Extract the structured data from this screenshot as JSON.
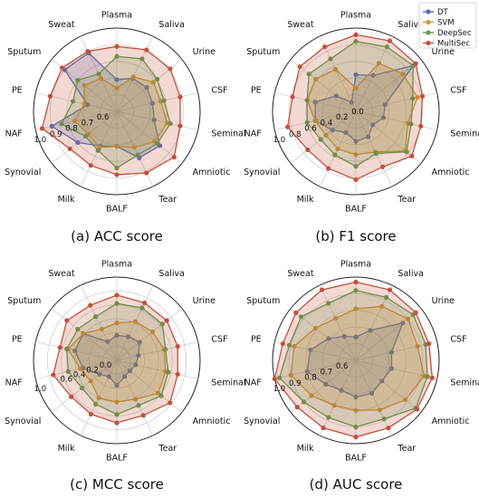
{
  "chart_data": [
    {
      "type": "radar",
      "caption": "(a) ACC score",
      "axes": [
        "Plasma",
        "Saliva",
        "Urine",
        "CSF",
        "Seminal",
        "Amniotic",
        "Tear",
        "BALF",
        "Milk",
        "Synovial",
        "NAF",
        "PE",
        "Sputum",
        "Sweat"
      ],
      "rlim": [
        0.5,
        1.0
      ],
      "ticks": [
        0.6,
        0.7,
        0.8,
        0.9,
        1.0
      ],
      "tick_labels": [
        "0.6",
        "0.7",
        "0.8",
        "0.9",
        "1.0"
      ],
      "series": [
        {
          "name": "DT",
          "values": [
            0.69,
            0.72,
            0.73,
            0.72,
            0.73,
            0.83,
            0.81,
            0.71,
            0.73,
            0.8,
            0.9,
            0.68,
            0.9,
            0.89
          ]
        },
        {
          "name": "SVM",
          "values": [
            0.64,
            0.73,
            0.78,
            0.77,
            0.81,
            0.79,
            0.74,
            0.71,
            0.74,
            0.72,
            0.76,
            0.7,
            0.75,
            0.72
          ]
        },
        {
          "name": "DeepSec",
          "values": [
            0.83,
            0.85,
            0.81,
            0.79,
            0.83,
            0.81,
            0.79,
            0.84,
            0.76,
            0.74,
            0.84,
            0.77,
            0.8,
            0.75
          ]
        },
        {
          "name": "MultiSec",
          "values": [
            0.89,
            0.91,
            0.91,
            0.89,
            0.89,
            0.94,
            0.91,
            0.88,
            0.86,
            0.86,
            0.96,
            0.91,
            0.92,
            0.9
          ]
        }
      ]
    },
    {
      "type": "radar",
      "caption": "(b) F1 score",
      "axes": [
        "Plasma",
        "Saliva",
        "Urine",
        "CSF",
        "Seminal",
        "Amniotic",
        "Tear",
        "BALF",
        "Milk",
        "Synovial",
        "NAF",
        "PE",
        "Sputum",
        "Sweat"
      ],
      "rlim": [
        0.0,
        1.0
      ],
      "ticks": [
        0.0,
        0.2,
        0.4,
        0.6,
        0.8,
        1.0
      ],
      "tick_labels": [
        "0.0",
        "0.2",
        "0.4",
        "0.6",
        "0.8",
        "1.0"
      ],
      "series": [
        {
          "name": "DT",
          "values": [
            0.44,
            0.48,
            0.88,
            0.36,
            0.34,
            0.26,
            0.34,
            0.36,
            0.28,
            0.36,
            0.5,
            0.5,
            0.3,
            0.12
          ]
        },
        {
          "name": "SVM",
          "values": [
            0.28,
            0.64,
            0.72,
            0.76,
            0.64,
            0.76,
            0.54,
            0.52,
            0.5,
            0.46,
            0.5,
            0.6,
            0.62,
            0.56
          ]
        },
        {
          "name": "DeepSec",
          "values": [
            0.84,
            0.86,
            0.88,
            0.7,
            0.68,
            0.78,
            0.56,
            0.66,
            0.58,
            0.54,
            0.6,
            0.6,
            0.72,
            0.7
          ]
        },
        {
          "name": "MultiSec",
          "values": [
            0.92,
            0.94,
            0.92,
            0.82,
            0.8,
            0.86,
            0.74,
            0.82,
            0.76,
            0.74,
            0.84,
            0.78,
            0.86,
            0.86
          ]
        }
      ]
    },
    {
      "type": "radar",
      "caption": "(c) MCC score",
      "axes": [
        "Plasma",
        "Saliva",
        "Urine",
        "CSF",
        "Seminal",
        "Amniotic",
        "Tear",
        "BALF",
        "Milk",
        "Synovial",
        "NAF",
        "PE",
        "Sputum",
        "Sweat"
      ],
      "rlim": [
        -0.2,
        1.0
      ],
      "ticks": [
        0.0,
        0.2,
        0.4,
        0.6,
        0.8,
        1.0
      ],
      "tick_labels": [
        "0.0",
        "0.2",
        "0.4",
        "0.6",
        "",
        "1.0"
      ],
      "series": [
        {
          "name": "DT",
          "values": [
            0.16,
            0.18,
            0.22,
            0.12,
            0.08,
            0.04,
            0.06,
            0.16,
            0.06,
            0.12,
            0.3,
            0.42,
            0.42,
            0.1
          ]
        },
        {
          "name": "SVM",
          "values": [
            0.34,
            0.42,
            0.46,
            0.5,
            0.52,
            0.56,
            0.42,
            0.4,
            0.4,
            0.28,
            0.34,
            0.52,
            0.42,
            0.3
          ]
        },
        {
          "name": "DeepSec",
          "values": [
            0.62,
            0.64,
            0.64,
            0.52,
            0.56,
            0.62,
            0.52,
            0.58,
            0.5,
            0.44,
            0.52,
            0.54,
            0.52,
            0.5
          ]
        },
        {
          "name": "MultiSec",
          "values": [
            0.74,
            0.72,
            0.72,
            0.7,
            0.7,
            0.78,
            0.68,
            0.7,
            0.66,
            0.64,
            0.74,
            0.64,
            0.72,
            0.68
          ]
        }
      ]
    },
    {
      "type": "radar",
      "caption": "(d) AUC score",
      "axes": [
        "Plasma",
        "Saliva",
        "Urine",
        "CSF",
        "Seminal",
        "Amniotic",
        "Tear",
        "BALF",
        "Milk",
        "Synovial",
        "NAF",
        "PE",
        "Sputum",
        "Sweat"
      ],
      "rlim": [
        0.5,
        1.0
      ],
      "ticks": [
        0.6,
        0.7,
        0.8,
        0.9,
        1.0
      ],
      "tick_labels": [
        "0.6",
        "0.7",
        "0.8",
        "0.9",
        "1.0"
      ],
      "series": [
        {
          "name": "DT",
          "values": [
            0.64,
            0.7,
            0.86,
            0.72,
            0.72,
            0.7,
            0.72,
            0.72,
            0.7,
            0.73,
            0.8,
            0.78,
            0.71,
            0.66
          ]
        },
        {
          "name": "SVM",
          "values": [
            0.81,
            0.86,
            0.9,
            0.88,
            0.92,
            0.88,
            0.83,
            0.8,
            0.8,
            0.84,
            0.9,
            0.88,
            0.81,
            0.78
          ]
        },
        {
          "name": "DeepSec",
          "values": [
            0.92,
            0.92,
            0.94,
            0.93,
            0.94,
            0.96,
            0.89,
            0.9,
            0.88,
            0.9,
            0.97,
            0.91,
            0.92,
            0.88
          ]
        },
        {
          "name": "MultiSec",
          "values": [
            0.97,
            0.97,
            0.96,
            0.95,
            0.97,
            0.97,
            0.95,
            0.96,
            0.95,
            0.95,
            1.0,
            0.95,
            0.96,
            0.97
          ]
        }
      ]
    }
  ],
  "legend": {
    "placement": "top-right",
    "items": [
      {
        "name": "DT",
        "color": "#4e6fbe"
      },
      {
        "name": "SVM",
        "color": "#d9952f"
      },
      {
        "name": "DeepSec",
        "color": "#5c9e4c"
      },
      {
        "name": "MultiSec",
        "color": "#c2513c"
      }
    ]
  }
}
